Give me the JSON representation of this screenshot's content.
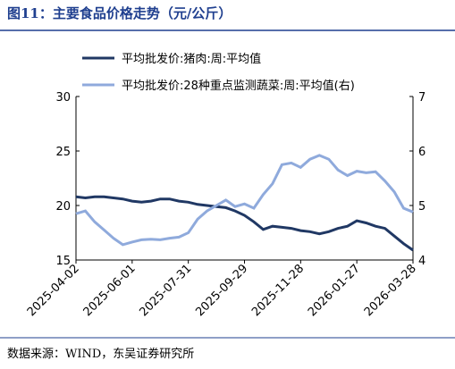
{
  "chart_data": {
    "type": "line",
    "title": "图11：主要食品价格走势（元/公斤）",
    "source": "数据来源：WIND，东吴证券研究所",
    "x": [
      "2025-04-02",
      "2025-04-12",
      "2025-04-22",
      "2025-05-02",
      "2025-05-12",
      "2025-05-22",
      "2025-06-01",
      "2025-06-11",
      "2025-06-21",
      "2025-07-01",
      "2025-07-11",
      "2025-07-21",
      "2025-07-31",
      "2025-08-10",
      "2025-08-20",
      "2025-08-30",
      "2025-09-09",
      "2025-09-19",
      "2025-09-29",
      "2025-10-09",
      "2025-10-19",
      "2025-10-29",
      "2025-11-08",
      "2025-11-18",
      "2025-11-28",
      "2025-12-08",
      "2025-12-18",
      "2025-12-28",
      "2026-01-07",
      "2026-01-17",
      "2026-01-27",
      "2026-02-06",
      "2026-02-16",
      "2026-02-26",
      "2026-03-08",
      "2026-03-18",
      "2026-03-28"
    ],
    "xlim": [
      "2025-04-02",
      "2026-03-28"
    ],
    "xticks": [
      "2025-04-02",
      "2025-06-01",
      "2025-07-31",
      "2025-09-29",
      "2025-11-28",
      "2026-01-27",
      "2026-03-28"
    ],
    "ylim": [
      15,
      30
    ],
    "yticks": [
      15,
      20,
      25,
      30
    ],
    "y2lim": [
      4,
      7
    ],
    "y2ticks": [
      4,
      5,
      6,
      7
    ],
    "series": [
      {
        "name": "平均批发价:猪肉:周:平均值",
        "color": "#203864",
        "values": [
          20.8,
          20.7,
          20.8,
          20.8,
          20.7,
          20.6,
          20.4,
          20.3,
          20.4,
          20.6,
          20.6,
          20.4,
          20.3,
          20.1,
          20.0,
          19.9,
          19.8,
          19.5,
          19.1,
          18.5,
          17.8,
          18.1,
          18.0,
          17.9,
          17.7,
          17.6,
          17.4,
          17.6,
          17.9,
          18.1,
          18.6,
          18.4,
          18.1,
          17.9,
          17.2,
          16.5,
          15.9
        ]
      },
      {
        "name": "平均批发价:28种重点监测蔬菜:周:平均值(右)",
        "color": "#8faadc",
        "axis": "y2",
        "values": [
          4.85,
          4.9,
          4.7,
          4.55,
          4.4,
          4.28,
          4.33,
          4.37,
          4.38,
          4.37,
          4.4,
          4.42,
          4.5,
          4.75,
          4.9,
          5.0,
          5.1,
          4.98,
          5.03,
          4.95,
          5.2,
          5.4,
          5.75,
          5.78,
          5.7,
          5.85,
          5.92,
          5.85,
          5.65,
          5.55,
          5.63,
          5.6,
          5.62,
          5.45,
          5.25,
          4.95,
          4.88
        ]
      }
    ]
  }
}
